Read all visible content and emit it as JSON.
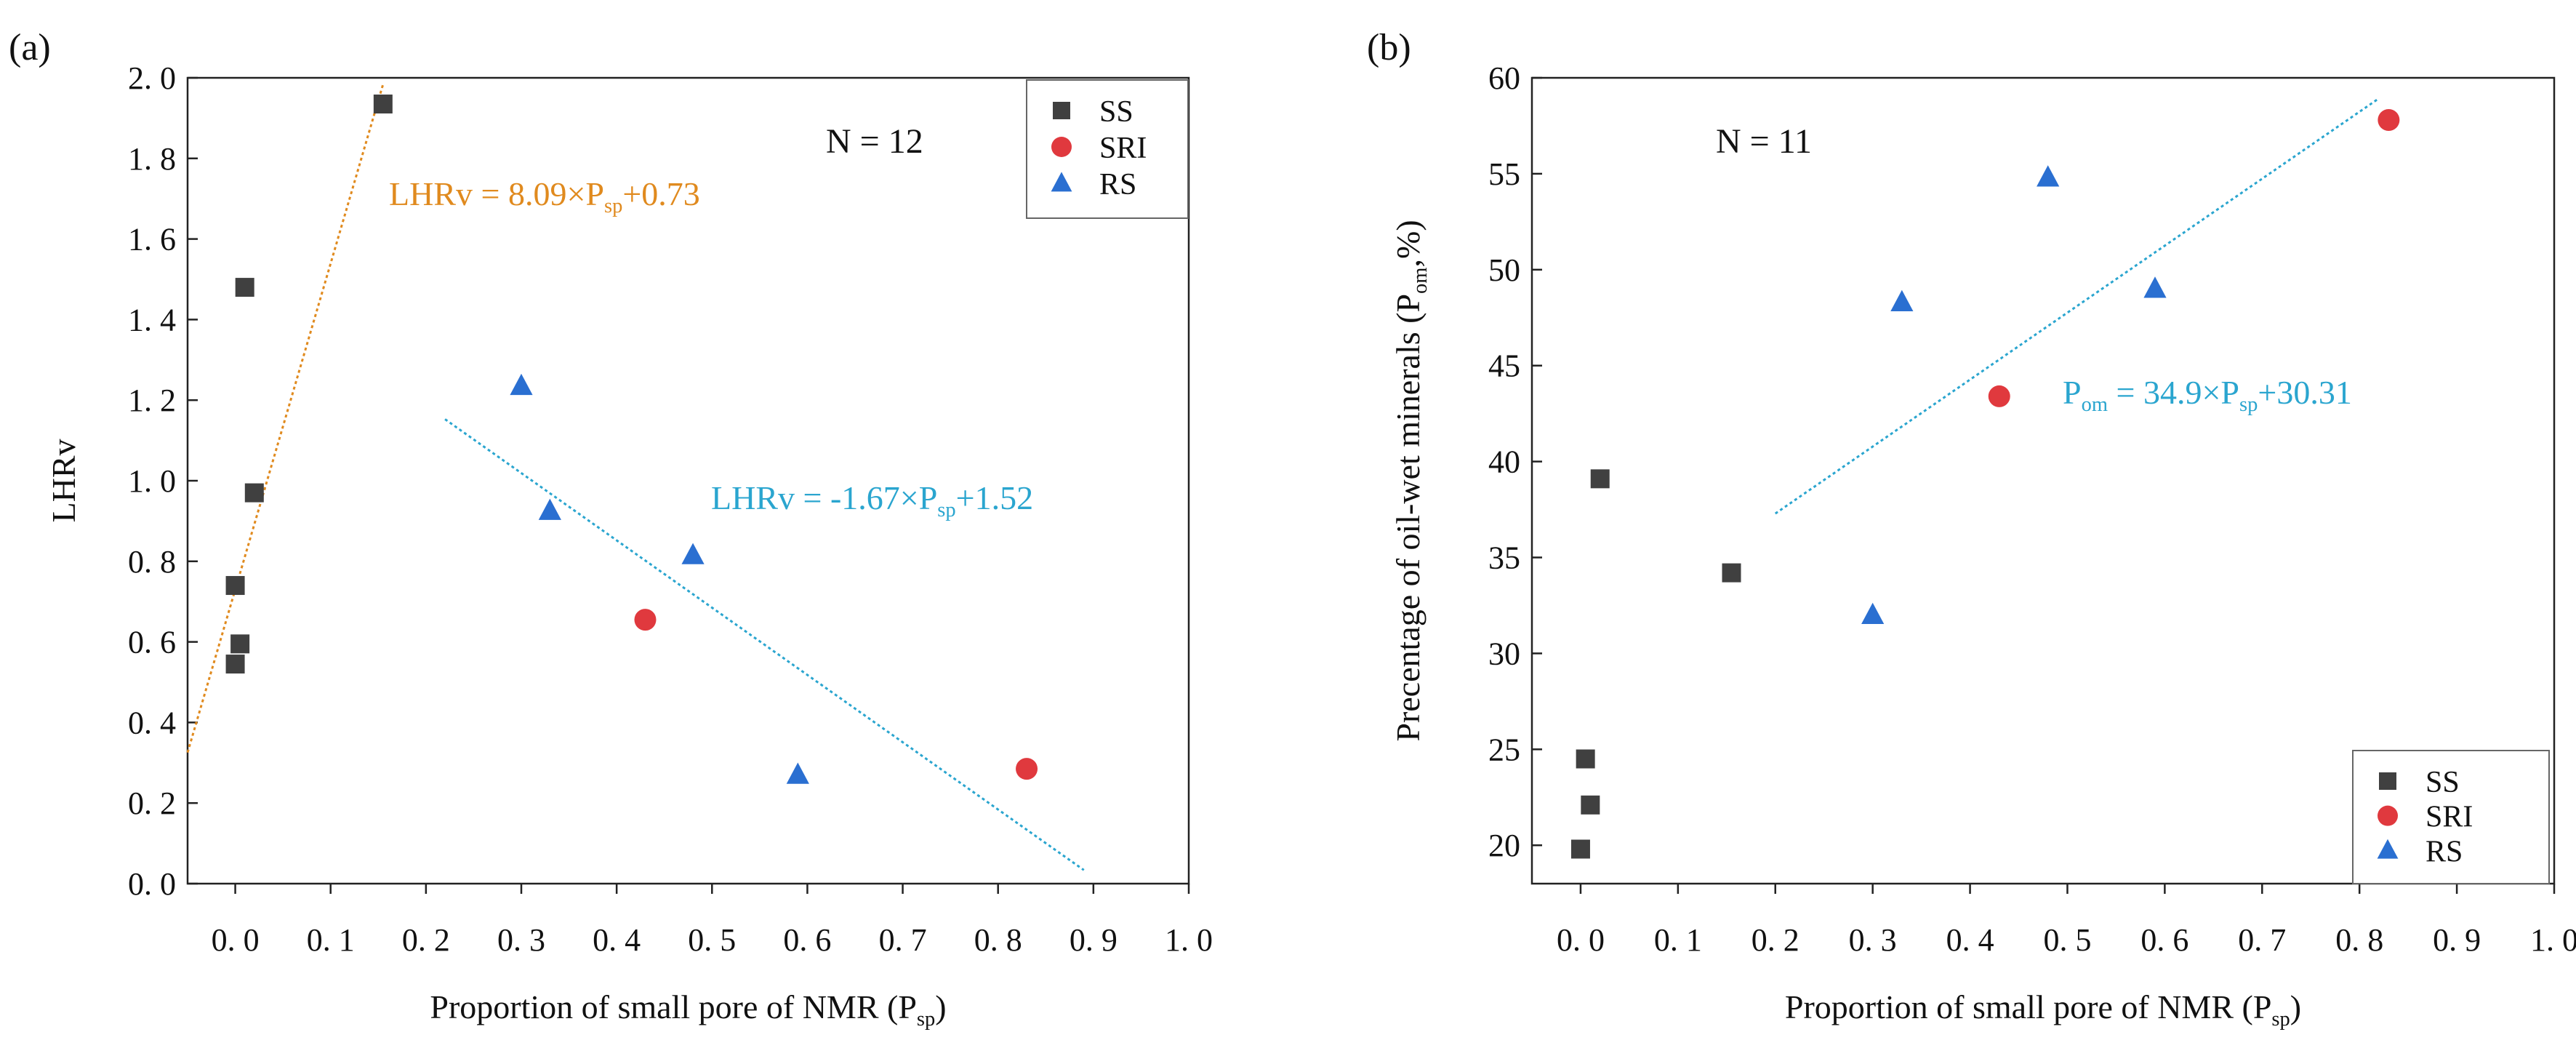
{
  "chart_data": [
    {
      "type": "scatter",
      "panel_label": "(a)",
      "xlabel": "Proportion of small pore  of  NMR (P",
      "xlabel_sub": "sp",
      "xlabel_close": ")",
      "ylabel": "LHRv",
      "xlim": [
        -0.05,
        1.0
      ],
      "ylim": [
        0.0,
        2.0
      ],
      "x_ticks": [
        0.0,
        0.1,
        0.2,
        0.3,
        0.4,
        0.5,
        0.6,
        0.7,
        0.8,
        0.9,
        1.0
      ],
      "x_tick_labels": [
        "0. 0",
        "0. 1",
        "0. 2",
        "0. 3",
        "0. 4",
        "0. 5",
        "0. 6",
        "0. 7",
        "0. 8",
        "0. 9",
        "1. 0"
      ],
      "y_ticks": [
        0.0,
        0.2,
        0.4,
        0.6,
        0.8,
        1.0,
        1.2,
        1.4,
        1.6,
        1.8,
        2.0
      ],
      "y_tick_labels": [
        "0. 0",
        "0. 2",
        "0. 4",
        "0. 6",
        "0. 8",
        "1. 0",
        "1. 2",
        "1. 4",
        "1. 6",
        "1. 8",
        "2. 0"
      ],
      "grid": false,
      "legend_position": "top-right",
      "annotation": "N = 12",
      "series": [
        {
          "name": "SS",
          "marker": "square",
          "color": "#404040",
          "points": [
            [
              0.0,
              0.545
            ],
            [
              0.005,
              0.595
            ],
            [
              0.0,
              0.74
            ],
            [
              0.02,
              0.97
            ],
            [
              0.01,
              1.48
            ],
            [
              0.155,
              1.935
            ]
          ]
        },
        {
          "name": "SRI",
          "marker": "circle",
          "color": "#e0393e",
          "points": [
            [
              0.43,
              0.655
            ],
            [
              0.83,
              0.285
            ]
          ]
        },
        {
          "name": "RS",
          "marker": "triangle",
          "color": "#2a6fd1",
          "points": [
            [
              0.3,
              1.235
            ],
            [
              0.33,
              0.925
            ],
            [
              0.48,
              0.815
            ],
            [
              0.59,
              0.27
            ]
          ]
        }
      ],
      "fit_lines": [
        {
          "label_main": "LHRv = 8.09×P",
          "label_sub": "sp",
          "label_tail": "+0.73",
          "color": "#e08a1e",
          "slope": 8.09,
          "intercept": 0.73,
          "x_range": [
            -0.05,
            0.155
          ]
        },
        {
          "label_main": "LHRv = -1.67×P",
          "label_sub": "sp",
          "label_tail": "+1.52",
          "color": "#2aa5cf",
          "slope": -1.67,
          "intercept": 1.52,
          "x_range": [
            0.22,
            0.89
          ]
        }
      ]
    },
    {
      "type": "scatter",
      "panel_label": "(b)",
      "xlabel": "Proportion of small pore  of  NMR (P",
      "xlabel_sub": "sp",
      "xlabel_close": ")",
      "ylabel": "Precentage of oil-wet minerals (P",
      "ylabel_sub": "om",
      "ylabel_tail": ",%)",
      "xlim": [
        -0.05,
        1.0
      ],
      "ylim": [
        18.0,
        60.0
      ],
      "x_ticks": [
        0.0,
        0.1,
        0.2,
        0.3,
        0.4,
        0.5,
        0.6,
        0.7,
        0.8,
        0.9,
        1.0
      ],
      "x_tick_labels": [
        "0. 0",
        "0. 1",
        "0. 2",
        "0. 3",
        "0. 4",
        "0. 5",
        "0. 6",
        "0. 7",
        "0. 8",
        "0. 9",
        "1. 0"
      ],
      "y_ticks": [
        20,
        25,
        30,
        35,
        40,
        45,
        50,
        55,
        60
      ],
      "y_tick_labels": [
        "20",
        "25",
        "30",
        "35",
        "40",
        "45",
        "50",
        "55",
        "60"
      ],
      "grid": false,
      "legend_position": "bottom-right",
      "annotation": "N = 11",
      "series": [
        {
          "name": "SS",
          "marker": "square",
          "color": "#404040",
          "points": [
            [
              0.0,
              19.8
            ],
            [
              0.005,
              24.5
            ],
            [
              0.01,
              22.1
            ],
            [
              0.02,
              39.1
            ],
            [
              0.155,
              34.2
            ]
          ]
        },
        {
          "name": "SRI",
          "marker": "circle",
          "color": "#e0393e",
          "points": [
            [
              0.43,
              43.4
            ],
            [
              0.83,
              57.8
            ]
          ]
        },
        {
          "name": "RS",
          "marker": "triangle",
          "color": "#2a6fd1",
          "points": [
            [
              0.3,
              32.0
            ],
            [
              0.33,
              48.3
            ],
            [
              0.48,
              54.8
            ],
            [
              0.59,
              49.0
            ]
          ]
        }
      ],
      "fit_lines": [
        {
          "label_main": "P",
          "label_sub": "om",
          "label_tail": " = 34.9×P",
          "label_sub2": "sp",
          "label_tail2": "+30.31",
          "color": "#2aa5cf",
          "slope": 34.9,
          "intercept": 30.31,
          "x_range": [
            0.2,
            0.82
          ]
        }
      ]
    }
  ]
}
